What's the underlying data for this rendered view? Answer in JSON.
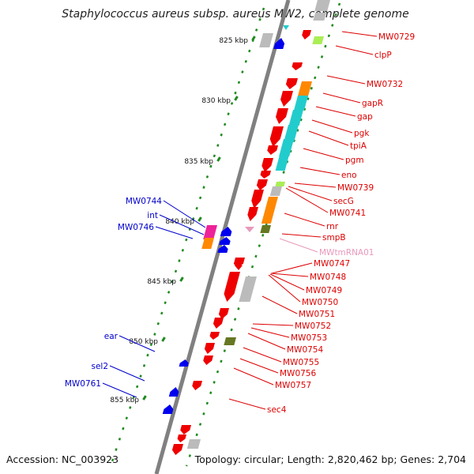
{
  "title": "Staphylococcus aureus subsp. aureus MW2, complete genome",
  "footer": {
    "accession": "Accession: NC_003923",
    "summary": "Topology: circular; Length: 2,820,462 bp; Genes: 2,704"
  },
  "colors": {
    "backbone": "#808080",
    "tick": "#1f8a1f",
    "forward_label": "#0000cc",
    "reverse_label": "#dd0000",
    "rna_label": "#e899bb",
    "gene_forward": "#0000ee",
    "gene_reverse": "#ee0000",
    "cog_cyan": "#22cccc",
    "cog_orange": "#ff8800",
    "cog_gray": "#bbbbbb",
    "cog_lime": "#aaee55",
    "cog_magenta": "#ee2299",
    "cog_olive": "#667722"
  },
  "ticks": [
    {
      "label": "825 kbp"
    },
    {
      "label": "830 kbp"
    },
    {
      "label": "835 kbp"
    },
    {
      "label": "840 kbp"
    },
    {
      "label": "845 kbp"
    },
    {
      "label": "850 kbp"
    },
    {
      "label": "855 kbp"
    }
  ],
  "forward_genes": [
    {
      "label": "MW0744"
    },
    {
      "label": "int"
    },
    {
      "label": "MW0746"
    },
    {
      "label": "ear"
    },
    {
      "label": "sel2"
    },
    {
      "label": "MW0761"
    }
  ],
  "reverse_genes": [
    {
      "label": "MW0729"
    },
    {
      "label": "clpP"
    },
    {
      "label": "MW0732"
    },
    {
      "label": "gapR"
    },
    {
      "label": "gap"
    },
    {
      "label": "pgk"
    },
    {
      "label": "tpiA"
    },
    {
      "label": "pgm"
    },
    {
      "label": "eno"
    },
    {
      "label": "MW0739"
    },
    {
      "label": "secG"
    },
    {
      "label": "MW0741"
    },
    {
      "label": "rnr"
    },
    {
      "label": "smpB"
    },
    {
      "label": "MWtmRNA01"
    },
    {
      "label": "MW0747"
    },
    {
      "label": "MW0748"
    },
    {
      "label": "MW0749"
    },
    {
      "label": "MW0750"
    },
    {
      "label": "MW0751"
    },
    {
      "label": "MW0752"
    },
    {
      "label": "MW0753"
    },
    {
      "label": "MW0754"
    },
    {
      "label": "MW0755"
    },
    {
      "label": "MW0756"
    },
    {
      "label": "MW0757"
    },
    {
      "label": "sec4"
    }
  ]
}
